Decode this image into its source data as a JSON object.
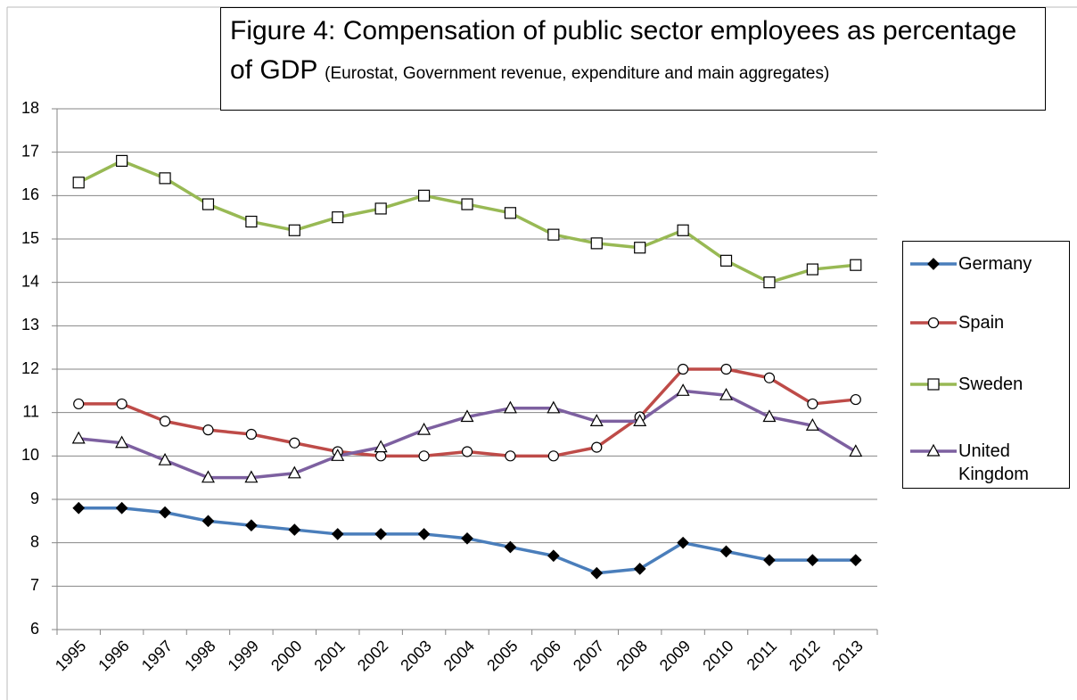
{
  "chart_data": {
    "type": "line",
    "title": "Figure 4: Compensation of public sector employees as percentage of GDP",
    "subtitle": "(Eurostat, Government revenue, expenditure and main aggregates)",
    "categories": [
      "1995",
      "1996",
      "1997",
      "1998",
      "1999",
      "2000",
      "2001",
      "2002",
      "2003",
      "2004",
      "2005",
      "2006",
      "2007",
      "2008",
      "2009",
      "2010",
      "2011",
      "2012",
      "2013"
    ],
    "series": [
      {
        "name": "Germany",
        "color": "#4a7ebb",
        "marker": "diamond",
        "values": [
          8.8,
          8.8,
          8.7,
          8.5,
          8.4,
          8.3,
          8.2,
          8.2,
          8.2,
          8.1,
          7.9,
          7.7,
          7.3,
          7.4,
          8.0,
          7.8,
          7.6,
          7.6,
          7.6
        ]
      },
      {
        "name": "Spain",
        "color": "#be4b48",
        "marker": "circle",
        "values": [
          11.2,
          11.2,
          10.8,
          10.6,
          10.5,
          10.3,
          10.1,
          10.0,
          10.0,
          10.1,
          10.0,
          10.0,
          10.2,
          10.9,
          12.0,
          12.0,
          11.8,
          11.2,
          11.3
        ]
      },
      {
        "name": "Sweden",
        "color": "#98b954",
        "marker": "square",
        "values": [
          16.3,
          16.8,
          16.4,
          15.8,
          15.4,
          15.2,
          15.5,
          15.7,
          16.0,
          15.8,
          15.6,
          15.1,
          14.9,
          14.8,
          15.2,
          14.5,
          14.0,
          14.3,
          14.4
        ]
      },
      {
        "name": "United Kingdom",
        "color": "#7d60a0",
        "marker": "triangle",
        "values": [
          10.4,
          10.3,
          9.9,
          9.5,
          9.5,
          9.6,
          10.0,
          10.2,
          10.6,
          10.9,
          11.1,
          11.1,
          10.8,
          10.8,
          11.5,
          11.4,
          10.9,
          10.7,
          10.1
        ]
      }
    ],
    "ylim": [
      6,
      18
    ],
    "yticks": [
      6,
      7,
      8,
      9,
      10,
      11,
      12,
      13,
      14,
      15,
      16,
      17,
      18
    ],
    "grid": true,
    "legend": "right"
  }
}
